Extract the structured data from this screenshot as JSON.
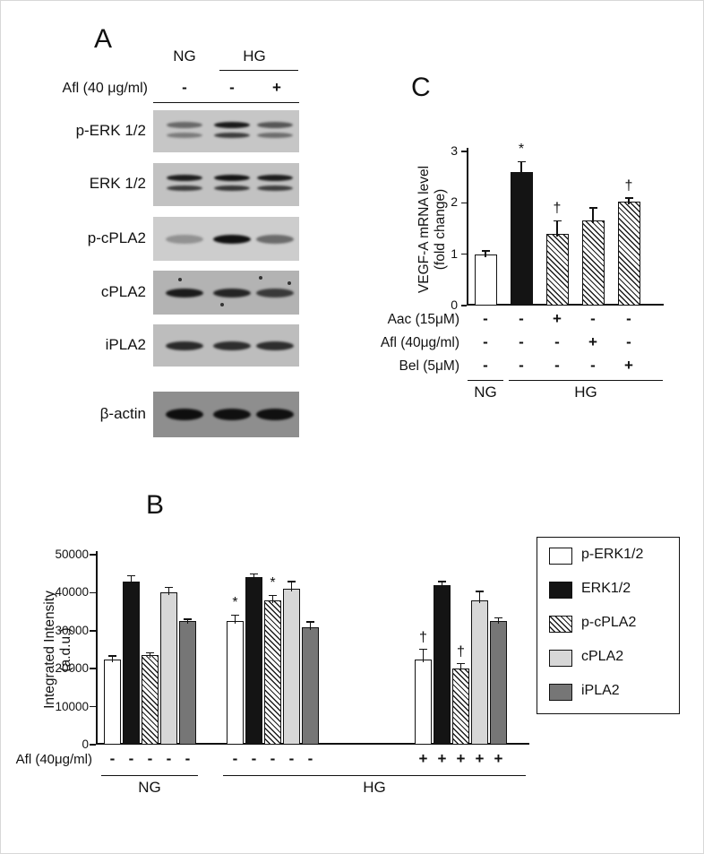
{
  "panel_a": {
    "label": "A",
    "lane_headers": [
      {
        "text": "NG",
        "lanes": [
          1
        ]
      },
      {
        "text": "HG",
        "lanes": [
          2,
          3
        ]
      }
    ],
    "treatment": {
      "label": "Afl (40 μg/ml)",
      "values": [
        "-",
        "-",
        "+"
      ]
    },
    "blots": [
      {
        "label": "p-ERK 1/2",
        "bg": "#c6c6c6",
        "doublet": true,
        "lane_intensities": [
          0.5,
          0.92,
          0.6
        ]
      },
      {
        "label": "ERK 1/2",
        "bg": "#c2c2c2",
        "doublet": true,
        "lane_intensities": [
          0.9,
          0.95,
          0.9
        ]
      },
      {
        "label": "p-cPLA2",
        "bg": "#cdcdcd",
        "doublet": false,
        "lane_intensities": [
          0.3,
          0.97,
          0.5
        ]
      },
      {
        "label": "cPLA2",
        "bg": "#b3b3b3",
        "doublet": false,
        "speckled": true,
        "lane_intensities": [
          0.9,
          0.85,
          0.72
        ]
      },
      {
        "label": "iPLA2",
        "bg": "#bdbdbd",
        "doublet": false,
        "lane_intensities": [
          0.82,
          0.8,
          0.8
        ]
      },
      {
        "label": "β-actin",
        "bg": "#8e8e8e",
        "doublet": false,
        "thick": true,
        "lane_intensities": [
          0.97,
          0.95,
          0.96
        ]
      }
    ]
  },
  "panel_b": {
    "label": "B"
  },
  "panel_c": {
    "label": "C"
  },
  "chart_data": [
    {
      "id": "panel_C",
      "panel": "C",
      "type": "bar",
      "ylabel_lines": [
        "VEGF-A mRNA level",
        "(fold change)"
      ],
      "ylabel": "VEGF-A mRNA level (fold change)",
      "ylim": [
        0,
        3
      ],
      "yticks": [
        0,
        1,
        2,
        3
      ],
      "bars": [
        {
          "group": "NG",
          "style": "white",
          "value": 1.0,
          "error": 0.06,
          "annotation": ""
        },
        {
          "group": "HG",
          "style": "black",
          "value": 2.6,
          "error": 0.2,
          "annotation": "*"
        },
        {
          "group": "HG",
          "style": "hatched",
          "value": 1.4,
          "error": 0.25,
          "annotation": "†"
        },
        {
          "group": "HG",
          "style": "hatched",
          "value": 1.65,
          "error": 0.25,
          "annotation": ""
        },
        {
          "group": "HG",
          "style": "hatched",
          "value": 2.02,
          "error": 0.07,
          "annotation": "†"
        }
      ],
      "treatment_rows": [
        {
          "label": "Aac (15μM)",
          "values": [
            "-",
            "-",
            "+",
            "-",
            "-"
          ]
        },
        {
          "label": "Afl (40μg/ml)",
          "values": [
            "-",
            "-",
            "-",
            "+",
            "-"
          ]
        },
        {
          "label": "Bel (5μM)",
          "values": [
            "-",
            "-",
            "-",
            "-",
            "+"
          ]
        }
      ],
      "group_labels": [
        {
          "text": "NG",
          "bars": [
            0
          ]
        },
        {
          "text": "HG",
          "bars": [
            1,
            2,
            3,
            4
          ]
        }
      ]
    },
    {
      "id": "panel_B",
      "panel": "B",
      "type": "bar",
      "ylabel_lines": [
        "Integrated Intensity",
        "(a.d.u.)"
      ],
      "ylabel": "Integrated Intensity (a.d.u.)",
      "ylim": [
        0,
        50000
      ],
      "yticks": [
        0,
        10000,
        20000,
        30000,
        40000,
        50000
      ],
      "groups": [
        "NG",
        "HG",
        "HG + Afl"
      ],
      "series": [
        {
          "name": "p-ERK1/2",
          "style": "white",
          "values": [
            22500,
            32500,
            22500
          ],
          "errors": [
            900,
            1600,
            2600
          ],
          "annotations": [
            "",
            "*",
            "†"
          ]
        },
        {
          "name": "ERK1/2",
          "style": "black",
          "values": [
            43000,
            44000,
            42000
          ],
          "errors": [
            1500,
            900,
            900
          ],
          "annotations": [
            "",
            "",
            ""
          ]
        },
        {
          "name": "p-cPLA2",
          "style": "hatched",
          "values": [
            23500,
            38000,
            20000
          ],
          "errors": [
            700,
            1300,
            1300
          ],
          "annotations": [
            "",
            "*",
            "†"
          ]
        },
        {
          "name": "cPLA2",
          "style": "lightgray",
          "values": [
            40000,
            41000,
            38000
          ],
          "errors": [
            1400,
            1900,
            2300
          ],
          "annotations": [
            "",
            "",
            ""
          ]
        },
        {
          "name": "iPLA2",
          "style": "darkgray",
          "values": [
            32500,
            31000,
            32500
          ],
          "errors": [
            500,
            1300,
            900
          ],
          "annotations": [
            "",
            "",
            ""
          ]
        }
      ],
      "treatment_row": {
        "label": "Afl (40μg/ml)",
        "values": [
          "-",
          "-",
          "+"
        ]
      },
      "group_labels": [
        {
          "text": "NG",
          "groups": [
            0
          ]
        },
        {
          "text": "HG",
          "groups": [
            1,
            2
          ]
        }
      ],
      "legend": [
        "p-ERK1/2",
        "ERK1/2",
        "p-cPLA2",
        "cPLA2",
        "iPLA2"
      ]
    }
  ]
}
